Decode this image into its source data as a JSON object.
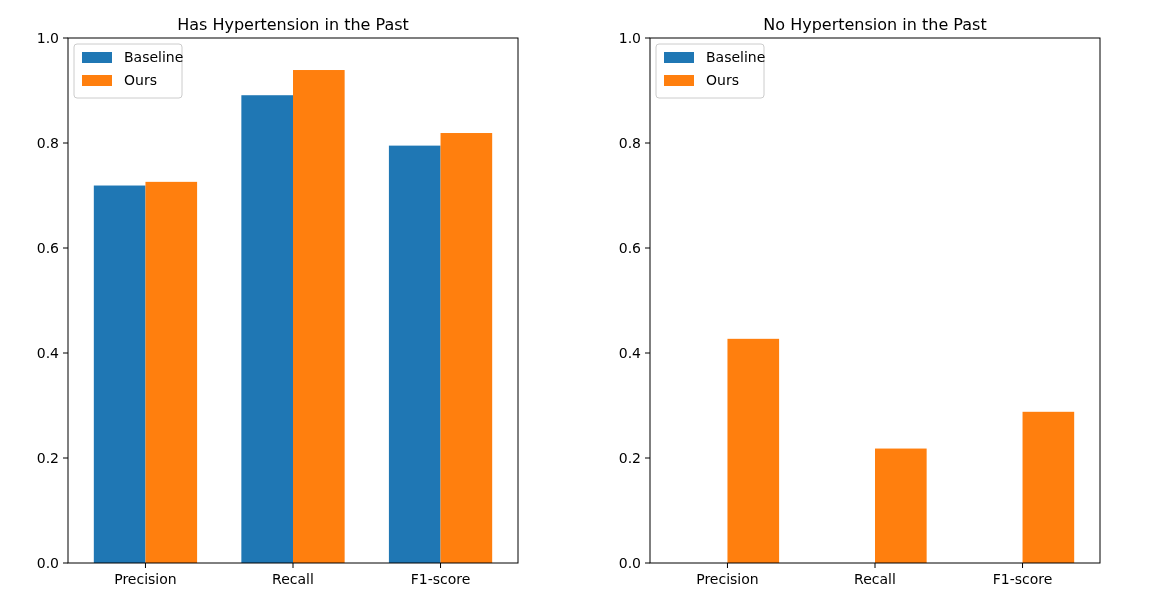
{
  "chart_data": [
    {
      "type": "bar",
      "title": "Has Hypertension in the Past",
      "categories": [
        "Precision",
        "Recall",
        "F1-score"
      ],
      "series": [
        {
          "name": "Baseline",
          "color": "#1f77b4",
          "values": [
            0.719,
            0.891,
            0.795
          ]
        },
        {
          "name": "Ours",
          "color": "#ff7f0e",
          "values": [
            0.726,
            0.939,
            0.819
          ]
        }
      ],
      "ylim": [
        0,
        1
      ],
      "yticks": [
        {
          "value": 0,
          "label": "0.0"
        },
        {
          "value": 0.2,
          "label": "0.2"
        },
        {
          "value": 0.4,
          "label": "0.4"
        },
        {
          "value": 0.6,
          "label": "0.6"
        },
        {
          "value": 0.8,
          "label": "0.8"
        },
        {
          "value": 1,
          "label": "1.0"
        }
      ],
      "legend": "top left"
    },
    {
      "type": "bar",
      "title": "No Hypertension in the Past",
      "categories": [
        "Precision",
        "Recall",
        "F1-score"
      ],
      "series": [
        {
          "name": "Baseline",
          "color": "#1f77b4",
          "values": [
            0,
            0,
            0
          ]
        },
        {
          "name": "Ours",
          "color": "#ff7f0e",
          "values": [
            0.427,
            0.218,
            0.288
          ]
        }
      ],
      "ylim": [
        0,
        1
      ],
      "yticks": [
        {
          "value": 0,
          "label": "0.0"
        },
        {
          "value": 0.2,
          "label": "0.2"
        },
        {
          "value": 0.4,
          "label": "0.4"
        },
        {
          "value": 0.6,
          "label": "0.6"
        },
        {
          "value": 0.8,
          "label": "0.8"
        },
        {
          "value": 1,
          "label": "1.0"
        }
      ],
      "legend": "top left"
    }
  ]
}
